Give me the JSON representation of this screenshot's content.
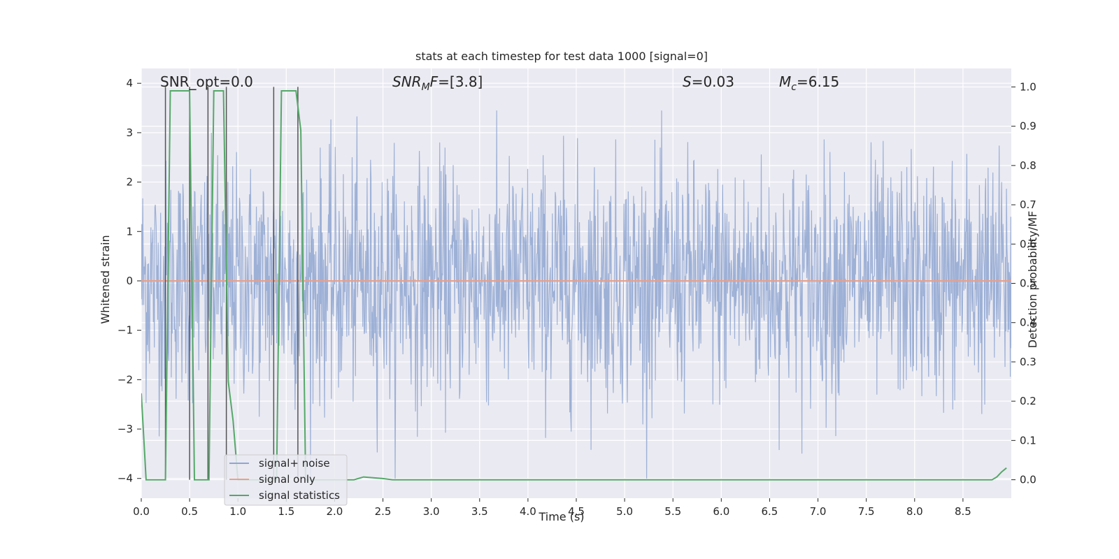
{
  "chart_data": {
    "type": "line",
    "title": "stats at each timestep for test data 1000 [signal=0]",
    "xlabel": "Time (s)",
    "ylabel": "Whitened strain",
    "ylabel_right": "Detection probability/MF",
    "xlim": [
      0.0,
      9.0
    ],
    "ylim": [
      -4.4,
      4.3
    ],
    "ylim_right": [
      -0.047,
      1.047
    ],
    "x_ticks": [
      "0.0",
      "0.5",
      "1.0",
      "1.5",
      "2.0",
      "2.5",
      "3.0",
      "3.5",
      "4.0",
      "4.5",
      "5.0",
      "5.5",
      "6.0",
      "6.5",
      "7.0",
      "7.5",
      "8.0",
      "8.5"
    ],
    "x_tick_values": [
      0,
      0.5,
      1,
      1.5,
      2,
      2.5,
      3,
      3.5,
      4,
      4.5,
      5,
      5.5,
      6,
      6.5,
      7,
      7.5,
      8,
      8.5
    ],
    "y_ticks": [
      "−4",
      "−3",
      "−2",
      "−1",
      "0",
      "1",
      "2",
      "3",
      "4"
    ],
    "y_tick_values": [
      -4,
      -3,
      -2,
      -1,
      0,
      1,
      2,
      3,
      4
    ],
    "y2_ticks": [
      "0.0",
      "0.1",
      "0.2",
      "0.3",
      "0.4",
      "0.5",
      "0.6",
      "0.7",
      "0.8",
      "0.9",
      "1.0"
    ],
    "y2_tick_values": [
      0,
      0.1,
      0.2,
      0.3,
      0.4,
      0.5,
      0.6,
      0.7,
      0.8,
      0.9,
      1.0
    ],
    "grid": true,
    "background": "#eaeaf2",
    "annotations": [
      {
        "text": "SNR_opt=0.0",
        "x": 0.19,
        "y": 4.0
      },
      {
        "text": "SNR_MF=[3.8]",
        "x": 2.6,
        "y": 4.0
      },
      {
        "text": "S=0.03",
        "x": 5.6,
        "y": 4.0
      },
      {
        "text": "M_c=6.15",
        "x": 6.6,
        "y": 4.0
      }
    ],
    "legend": {
      "placement": "lower-left",
      "entries": [
        "signal+ noise",
        "signal only",
        "signal statistics"
      ]
    },
    "series": [
      {
        "name": "signal+ noise",
        "axis": "left",
        "color": "#8fa6d1",
        "description_kind": "noise",
        "amplitude_typical": 1.2,
        "max": 3.45,
        "min": -4.0
      },
      {
        "name": "signal only",
        "axis": "left",
        "color": "#e8a08a",
        "x": [
          0.0,
          9.0
        ],
        "y": [
          0.0,
          0.0
        ]
      },
      {
        "name": "signal statistics",
        "axis": "right",
        "color": "#55a868",
        "x": [
          0.0,
          0.05,
          0.1,
          0.15,
          0.2,
          0.25,
          0.3,
          0.35,
          0.4,
          0.45,
          0.5,
          0.55,
          0.6,
          0.65,
          0.7,
          0.75,
          0.8,
          0.85,
          0.9,
          0.95,
          1.0,
          1.05,
          1.1,
          1.15,
          1.2,
          1.25,
          1.3,
          1.35,
          1.4,
          1.45,
          1.5,
          1.55,
          1.6,
          1.65,
          1.7,
          1.75,
          1.8,
          1.85,
          1.9,
          1.95,
          2.0,
          2.1,
          2.2,
          2.3,
          2.4,
          2.5,
          2.6,
          2.7,
          3.0,
          4.0,
          5.0,
          6.0,
          7.0,
          8.0,
          8.8,
          8.85,
          8.9,
          8.95
        ],
        "y": [
          0.22,
          0.0,
          0.0,
          0.0,
          0.0,
          0.0,
          0.99,
          0.99,
          0.99,
          0.99,
          0.99,
          0.0,
          0.0,
          0.0,
          0.0,
          0.99,
          0.99,
          0.99,
          0.25,
          0.15,
          0.0,
          0.0,
          0.0,
          0.0,
          0.0,
          0.0,
          0.0,
          0.0,
          0.0,
          0.99,
          0.99,
          0.99,
          0.99,
          0.89,
          0.0,
          0.0,
          0.0,
          0.0,
          0.0,
          0.0,
          0.0,
          0.0,
          0.0,
          0.007,
          0.005,
          0.003,
          0.0,
          0.0,
          0.0,
          0.0,
          0.0,
          0.0,
          0.0,
          0.0,
          0.0,
          0.007,
          0.02,
          0.03
        ]
      }
    ],
    "vertical_lines": {
      "color": "#555555",
      "axis": "right",
      "x": [
        0.25,
        0.5,
        0.69,
        0.88,
        1.37,
        1.62
      ],
      "y_top": 1.0
    }
  }
}
